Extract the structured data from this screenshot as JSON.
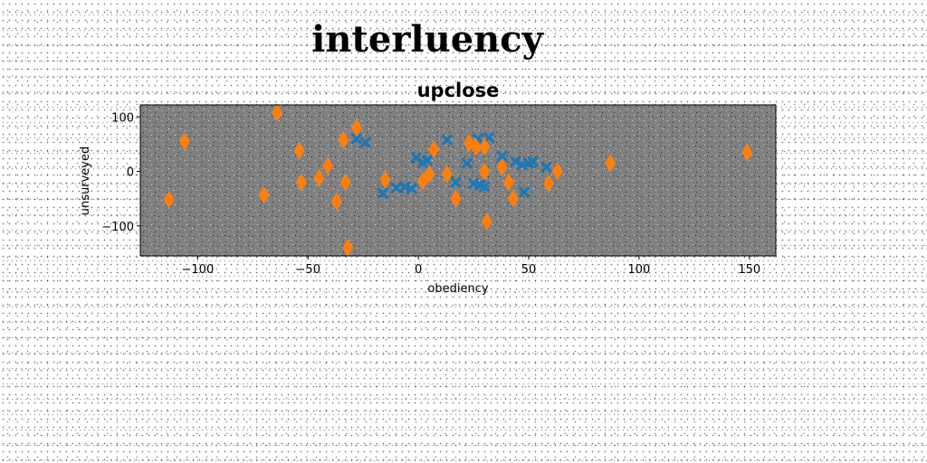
{
  "chart_data": {
    "type": "scatter",
    "suptitle": "interluency",
    "title": "upclose",
    "xlabel": "obediency",
    "ylabel": "unsurveyed",
    "xlim": [
      -126,
      162
    ],
    "ylim": [
      -155,
      122
    ],
    "xticks": [
      -100,
      -50,
      0,
      50,
      100,
      150
    ],
    "yticks": [
      -100,
      0,
      100
    ],
    "xtick_labels": [
      "−100",
      "−50",
      "0",
      "50",
      "100",
      "150"
    ],
    "ytick_labels": [
      "−100",
      "0",
      "100"
    ],
    "grid": false,
    "legend": "none",
    "plot_background": "#808080",
    "series": [
      {
        "marker": "X",
        "color": "#1f77b4",
        "points": [
          [
            -28,
            60
          ],
          [
            -24,
            53
          ],
          [
            -16,
            -40
          ],
          [
            -10,
            -30
          ],
          [
            -6,
            -28
          ],
          [
            -3,
            -32
          ],
          [
            -1,
            25
          ],
          [
            2,
            16
          ],
          [
            4,
            20
          ],
          [
            13,
            58
          ],
          [
            17,
            -20
          ],
          [
            22,
            15
          ],
          [
            25,
            -22
          ],
          [
            27,
            60
          ],
          [
            28,
            -25
          ],
          [
            30,
            -28
          ],
          [
            32,
            62
          ],
          [
            38,
            28
          ],
          [
            44,
            18
          ],
          [
            47,
            12
          ],
          [
            48,
            -38
          ],
          [
            50,
            15
          ],
          [
            52,
            18
          ],
          [
            58,
            8
          ]
        ]
      },
      {
        "marker": "d",
        "color": "#ff7f0e",
        "points": [
          [
            -113,
            -52
          ],
          [
            -106,
            55
          ],
          [
            -70,
            -43
          ],
          [
            -64,
            108
          ],
          [
            -54,
            38
          ],
          [
            -53,
            -20
          ],
          [
            -45,
            -12
          ],
          [
            -41,
            10
          ],
          [
            -37,
            -55
          ],
          [
            -34,
            58
          ],
          [
            -33,
            -20
          ],
          [
            -32,
            -140
          ],
          [
            -28,
            80
          ],
          [
            -15,
            -15
          ],
          [
            2,
            -18
          ],
          [
            5,
            -5
          ],
          [
            7,
            40
          ],
          [
            13,
            -5
          ],
          [
            17,
            -50
          ],
          [
            23,
            52
          ],
          [
            26,
            45
          ],
          [
            30,
            0
          ],
          [
            30,
            45
          ],
          [
            31,
            -92
          ],
          [
            38,
            8
          ],
          [
            41,
            -20
          ],
          [
            43,
            -50
          ],
          [
            59,
            -22
          ],
          [
            63,
            0
          ],
          [
            87,
            15
          ],
          [
            149,
            35
          ]
        ]
      }
    ]
  }
}
